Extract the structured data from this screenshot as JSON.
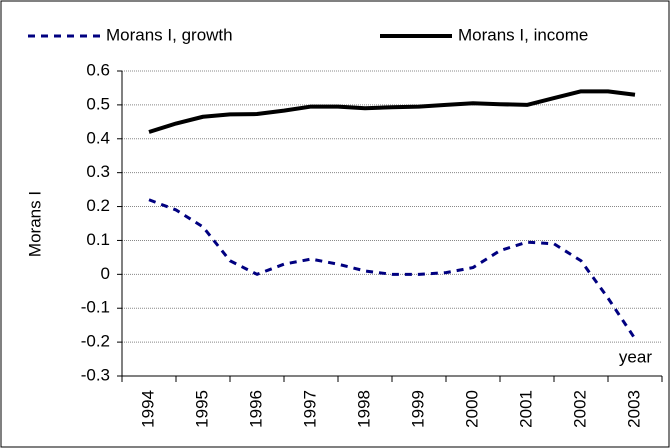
{
  "chart_data": {
    "type": "line",
    "y_label": "Morans I",
    "x_label": "year",
    "x": [
      1994,
      1994.5,
      1995,
      1995.5,
      1996,
      1996.5,
      1997,
      1997.5,
      1998,
      1998.5,
      1999,
      1999.5,
      2000,
      2000.5,
      2001,
      2001.5,
      2002,
      2002.5,
      2003
    ],
    "series": [
      {
        "name": "Morans I, growth",
        "color": "#000080",
        "dashed": true,
        "values": [
          0.22,
          0.19,
          0.14,
          0.04,
          0.0,
          0.03,
          0.045,
          0.03,
          0.01,
          0.0,
          0.0,
          0.005,
          0.02,
          0.07,
          0.095,
          0.09,
          0.04,
          -0.07,
          -0.19
        ]
      },
      {
        "name": "Morans I, income",
        "color": "#000000",
        "dashed": false,
        "values": [
          0.42,
          0.445,
          0.465,
          0.472,
          0.473,
          0.483,
          0.495,
          0.495,
          0.49,
          0.493,
          0.495,
          0.5,
          0.505,
          0.502,
          0.5,
          0.52,
          0.54,
          0.54,
          0.53
        ]
      }
    ],
    "xlim": [
      1993.5,
      2003.5
    ],
    "xticks": [
      1994,
      1995,
      1996,
      1997,
      1998,
      1999,
      2000,
      2001,
      2002,
      2003
    ],
    "ylim": [
      -0.3,
      0.6
    ],
    "yticks": [
      -0.3,
      -0.2,
      -0.1,
      0,
      0.1,
      0.2,
      0.3,
      0.4,
      0.5,
      0.6
    ],
    "grid": true,
    "legend": "top"
  }
}
